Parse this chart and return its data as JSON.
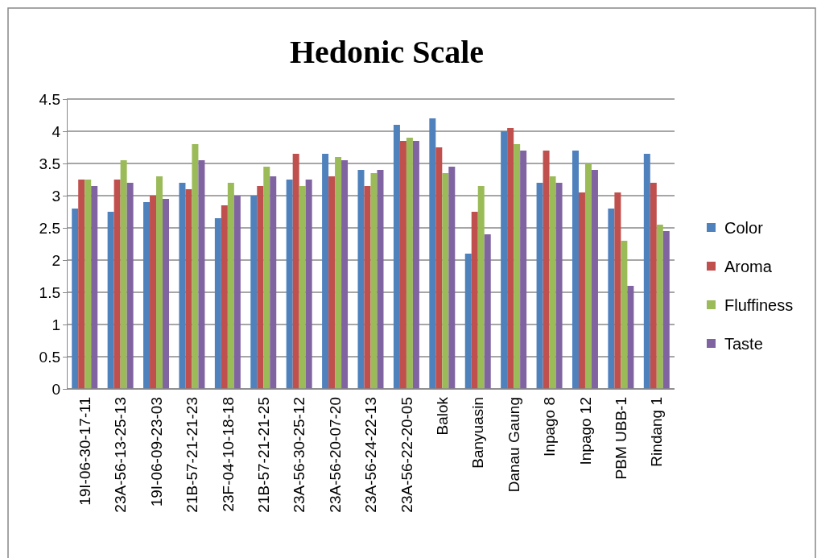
{
  "chart_data": {
    "type": "bar",
    "title": "Hedonic Scale",
    "categories": [
      "19I-06-30-17-11",
      "23A-56-13-25-13",
      "19I-06-09-23-03",
      "21B-57-21-21-23",
      "23F-04-10-18-18",
      "21B-57-21-21-25",
      "23A-56-30-25-12",
      "23A-56-20-07-20",
      "23A-56-24-22-13",
      "23A-56-22-20-05",
      "Balok",
      "Banyuasin",
      "Danau Gaung",
      "Inpago 8",
      "Inpago 12",
      "PBM UBB-1",
      "Rindang 1"
    ],
    "series": [
      {
        "name": "Color",
        "color": "#4f81bd",
        "values": [
          2.8,
          2.75,
          2.9,
          3.2,
          2.65,
          3.0,
          3.25,
          3.65,
          3.4,
          4.1,
          4.2,
          2.1,
          4.0,
          3.2,
          3.7,
          2.8,
          3.65
        ]
      },
      {
        "name": "Aroma",
        "color": "#c0504d",
        "values": [
          3.25,
          3.25,
          3.0,
          3.1,
          2.85,
          3.15,
          3.65,
          3.3,
          3.15,
          3.85,
          3.75,
          2.75,
          4.05,
          3.7,
          3.05,
          3.05,
          3.2
        ]
      },
      {
        "name": "Fluffiness",
        "color": "#9bbb59",
        "values": [
          3.25,
          3.55,
          3.3,
          3.8,
          3.2,
          3.45,
          3.15,
          3.6,
          3.35,
          3.9,
          3.35,
          3.15,
          3.8,
          3.3,
          3.5,
          2.3,
          2.55
        ]
      },
      {
        "name": "Taste",
        "color": "#8064a2",
        "values": [
          3.15,
          3.2,
          2.95,
          3.55,
          3.0,
          3.3,
          3.25,
          3.55,
          3.4,
          3.85,
          3.45,
          2.4,
          3.7,
          3.2,
          3.4,
          1.6,
          2.45
        ]
      }
    ],
    "ylim": [
      0,
      4.5
    ],
    "yticks": [
      {
        "value": 0,
        "label": "0"
      },
      {
        "value": 0.5,
        "label": "0.5"
      },
      {
        "value": 1,
        "label": "1"
      },
      {
        "value": 1.5,
        "label": "1.5"
      },
      {
        "value": 2,
        "label": "2"
      },
      {
        "value": 2.5,
        "label": "2.5"
      },
      {
        "value": 3,
        "label": "3"
      },
      {
        "value": 3.5,
        "label": "3.5"
      },
      {
        "value": 4,
        "label": "4"
      },
      {
        "value": 4.5,
        "label": "4.5"
      }
    ],
    "grid": "y",
    "legend": "right"
  }
}
